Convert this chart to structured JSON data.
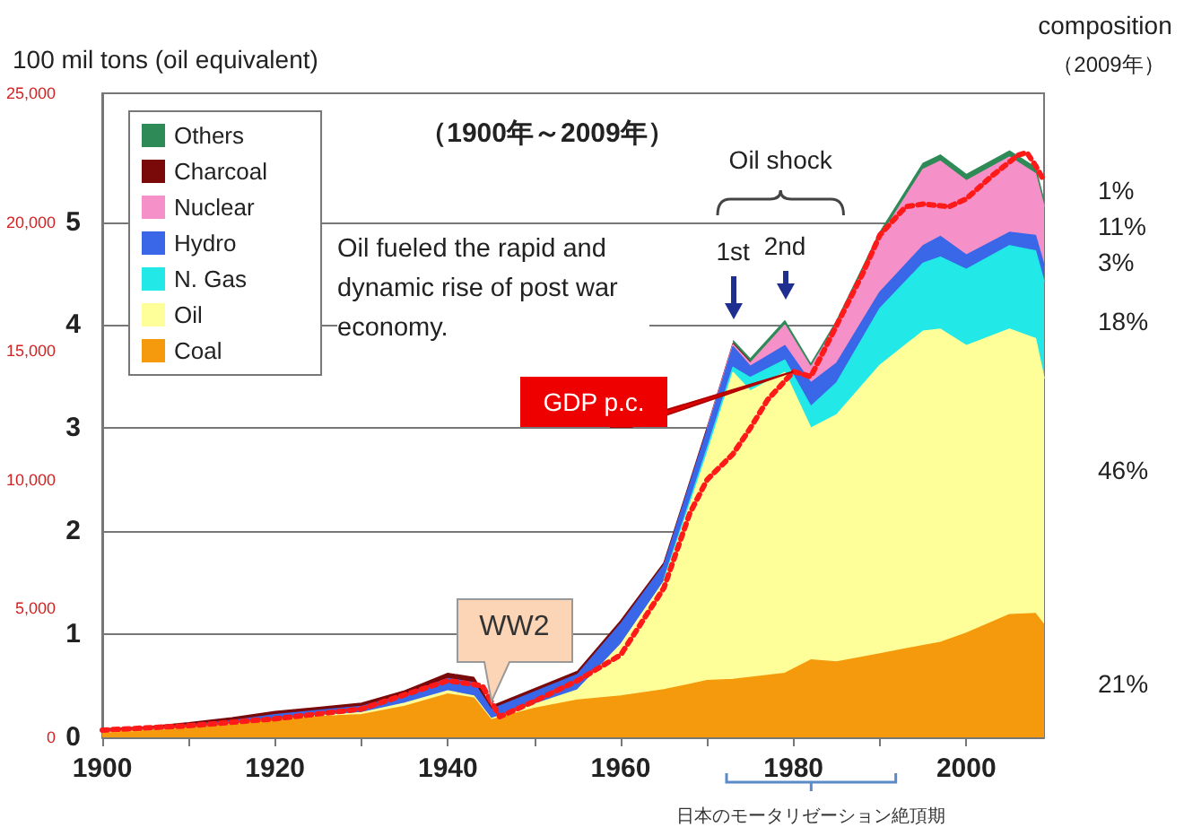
{
  "chart_data": {
    "type": "area",
    "title": "（1900年～2009年）",
    "ylabel": "100 mil tons (oil equivalent)",
    "stacked": true,
    "grid": "y",
    "legend": "top left",
    "xlim": [
      1900,
      2009
    ],
    "xticks": [
      1900,
      {
        "value": 1910,
        "label": null
      },
      1920,
      {
        "value": 1930,
        "label": null
      },
      1940,
      {
        "value": 1950,
        "label": null
      },
      1960,
      {
        "value": 1970,
        "label": null
      },
      1980,
      {
        "value": 1990,
        "label": null
      },
      2000
    ],
    "ylim": [
      0,
      6.25
    ],
    "yticks": [
      0,
      1,
      2,
      3,
      4,
      5
    ],
    "y2lim": [
      0,
      25000
    ],
    "y2ticks": [
      0,
      {
        "value": 5000,
        "label": "5,000"
      },
      {
        "value": 10000,
        "label": "10,000"
      },
      {
        "value": 15000,
        "label": "15,000"
      },
      {
        "value": 20000,
        "label": "20,000"
      },
      {
        "value": 25000,
        "label": "25,000"
      }
    ],
    "x": [
      1900,
      1905,
      1910,
      1915,
      1920,
      1925,
      1930,
      1935,
      1940,
      1943,
      1945,
      1950,
      1955,
      1960,
      1965,
      1970,
      1973,
      1975,
      1979,
      1982,
      1985,
      1990,
      1995,
      1997,
      2000,
      2005,
      2008,
      2009
    ],
    "series": [
      {
        "name": "Coal",
        "color": "#f59a0c",
        "values": [
          0.05,
          0.07,
          0.1,
          0.12,
          0.17,
          0.2,
          0.22,
          0.3,
          0.42,
          0.38,
          0.17,
          0.28,
          0.36,
          0.4,
          0.46,
          0.55,
          0.56,
          0.58,
          0.62,
          0.75,
          0.73,
          0.81,
          0.89,
          0.92,
          1.01,
          1.19,
          1.2,
          1.09
        ]
      },
      {
        "name": "Oil",
        "color": "#ffff99",
        "values": [
          0,
          0,
          0,
          0.01,
          0.01,
          0.01,
          0.02,
          0.03,
          0.03,
          0.02,
          0.01,
          0.04,
          0.1,
          0.5,
          1.05,
          2.2,
          2.98,
          2.78,
          2.92,
          2.25,
          2.4,
          2.8,
          3.05,
          3.04,
          2.79,
          2.77,
          2.67,
          2.39
        ]
      },
      {
        "name": "N. Gas",
        "color": "#22e8e8",
        "values": [
          null,
          null,
          null,
          null,
          null,
          null,
          null,
          null,
          null,
          null,
          null,
          null,
          null,
          null,
          0.02,
          0.05,
          0.05,
          0.13,
          0.12,
          0.21,
          0.31,
          0.55,
          0.66,
          0.7,
          0.74,
          0.81,
          0.85,
          0.94
        ]
      },
      {
        "name": "Hydro",
        "color": "#3a66e8",
        "values": [
          0.01,
          0.01,
          0.02,
          0.03,
          0.04,
          0.05,
          0.06,
          0.08,
          0.12,
          0.13,
          0.09,
          0.12,
          0.15,
          0.2,
          0.14,
          0.18,
          0.2,
          0.11,
          0.14,
          0.23,
          0.19,
          0.16,
          0.17,
          0.2,
          0.14,
          0.13,
          0.15,
          0.16
        ]
      },
      {
        "name": "Nuclear",
        "color": "#f590c8",
        "values": [
          null,
          null,
          null,
          null,
          null,
          null,
          null,
          null,
          null,
          null,
          null,
          null,
          null,
          null,
          null,
          0.01,
          0.02,
          0.03,
          0.2,
          0.15,
          0.38,
          0.53,
          0.74,
          0.73,
          0.72,
          0.73,
          0.6,
          0.57
        ]
      },
      {
        "name": "Charcoal",
        "color": "#7a0a0a",
        "values": [
          0.02,
          0.02,
          0.02,
          0.03,
          0.03,
          0.03,
          0.03,
          0.04,
          0.05,
          0.05,
          0.03,
          0.03,
          0.03,
          0.03,
          0.02,
          0.01,
          0.01,
          0.01,
          null,
          null,
          null,
          null,
          null,
          null,
          null,
          null,
          null,
          null
        ]
      },
      {
        "name": "Others",
        "color": "#2e8b57",
        "values": [
          null,
          null,
          null,
          null,
          null,
          null,
          null,
          null,
          null,
          null,
          null,
          null,
          null,
          null,
          null,
          null,
          0.03,
          0.03,
          0.04,
          0.03,
          0.03,
          0.05,
          0.06,
          0.06,
          0.06,
          0.06,
          0.06,
          0.05
        ]
      },
      {
        "name": "GDP p.c.",
        "type": "line",
        "axis": "y2",
        "line_style": "dotted",
        "color": "#ff1a1a",
        "x": [
          1900,
          1910,
          1920,
          1930,
          1940,
          1944,
          1946,
          1950,
          1955,
          1960,
          1965,
          1968,
          1970,
          1973,
          1975,
          1977,
          1980,
          1982,
          1985,
          1988,
          1990,
          1993,
          1995,
          1998,
          2000,
          2003,
          2006,
          2007,
          2008,
          2009
        ],
        "values": [
          280,
          450,
          720,
          1100,
          2200,
          2000,
          800,
          1400,
          2200,
          3200,
          5800,
          8700,
          10000,
          11000,
          12000,
          13100,
          14200,
          14000,
          16000,
          18000,
          19500,
          20600,
          20700,
          20600,
          20900,
          21800,
          22600,
          22700,
          22200,
          21600
        ]
      }
    ],
    "annotations": [
      "composition",
      "（2009年）",
      "Oil fueled the rapid and dynamic rise of post war economy.",
      "Oil shock",
      "1st",
      "2nd",
      {
        "text": "WW2",
        "x": 1945,
        "y": 0.27
      },
      "日本のモータリゼーション絶頂期",
      "1%",
      "11%",
      "3%",
      "18%",
      "46%",
      "21%"
    ]
  }
}
